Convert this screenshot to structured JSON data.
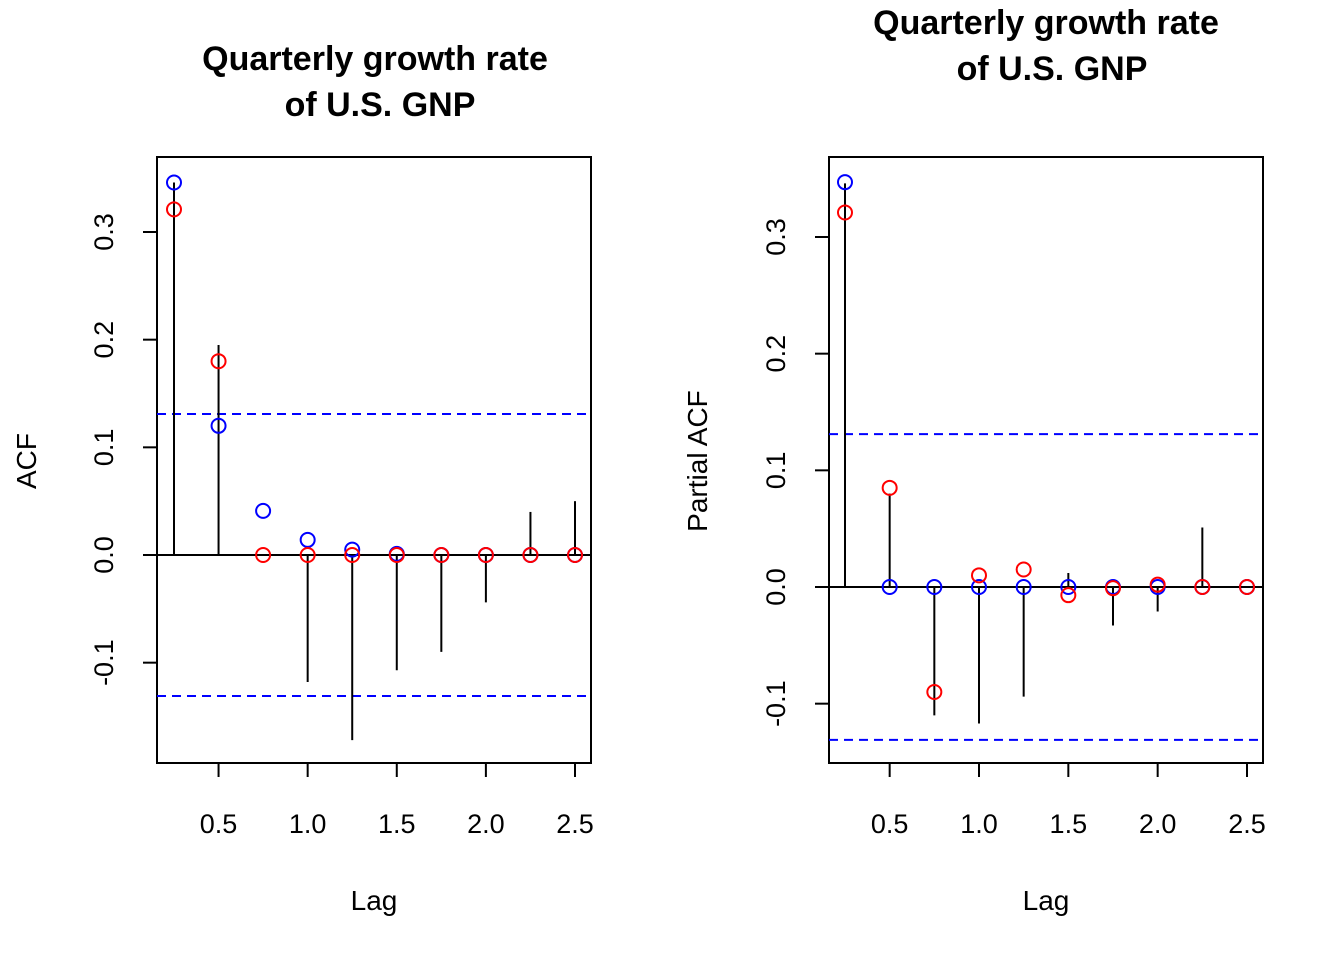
{
  "colors": {
    "blue": "#0000ff",
    "red": "#ff0000",
    "black": "#000000"
  },
  "chart_data": [
    {
      "type": "scatter",
      "title_lines": [
        "Quarterly growth rate",
        "of U.S. GNP"
      ],
      "xlabel": "Lag",
      "ylabel": "ACF",
      "xlim": [
        0.25,
        2.5
      ],
      "ylim": [
        -0.19,
        0.36
      ],
      "xticks": [
        0.5,
        1.0,
        1.5,
        2.0,
        2.5
      ],
      "xtick_labels": [
        "0.5",
        "1.0",
        "1.5",
        "2.0",
        "2.5"
      ],
      "yticks": [
        -0.1,
        0.0,
        0.1,
        0.2,
        0.3
      ],
      "ytick_labels": [
        "-0.1",
        "0.0",
        "0.1",
        "0.2",
        "0.3"
      ],
      "confidence_band": [
        0.131,
        -0.131
      ],
      "lags": [
        0.25,
        0.5,
        0.75,
        1.0,
        1.25,
        1.5,
        1.75,
        2.0,
        2.25,
        2.5
      ],
      "sample": [
        0.346,
        0.195,
        0.0,
        -0.118,
        -0.172,
        -0.107,
        -0.09,
        -0.044,
        0.04,
        0.05
      ],
      "series": [
        {
          "color": "blue",
          "values": [
            0.346,
            0.12,
            0.041,
            0.014,
            0.005,
            0.001,
            0.0,
            0.0,
            0.0,
            0.0
          ]
        },
        {
          "color": "red",
          "values": [
            0.321,
            0.18,
            0.0,
            0.0,
            0.0,
            0.0,
            0.0,
            0.0,
            0.0,
            0.0
          ]
        }
      ]
    },
    {
      "type": "scatter",
      "title_lines": [
        "Quarterly growth rate",
        "of U.S. GNP"
      ],
      "xlabel": "Lag",
      "ylabel": "Partial ACF",
      "xlim": [
        0.25,
        2.5
      ],
      "ylim": [
        -0.15,
        0.36
      ],
      "xticks": [
        0.5,
        1.0,
        1.5,
        2.0,
        2.5
      ],
      "xtick_labels": [
        "0.5",
        "1.0",
        "1.5",
        "2.0",
        "2.5"
      ],
      "yticks": [
        -0.1,
        0.0,
        0.1,
        0.2,
        0.3
      ],
      "ytick_labels": [
        "-0.1",
        "0.0",
        "0.1",
        "0.2",
        "0.3"
      ],
      "confidence_band": [
        0.131,
        -0.131
      ],
      "lags": [
        0.25,
        0.5,
        0.75,
        1.0,
        1.25,
        1.5,
        1.75,
        2.0,
        2.25,
        2.5
      ],
      "sample": [
        0.346,
        0.08,
        -0.11,
        -0.117,
        -0.094,
        0.012,
        -0.033,
        -0.021,
        0.051,
        0.0
      ],
      "series": [
        {
          "color": "blue",
          "values": [
            0.347,
            0.0,
            0.0,
            0.0,
            0.0,
            0.0,
            0.0,
            0.0,
            0.0,
            0.0
          ]
        },
        {
          "color": "red",
          "values": [
            0.321,
            0.085,
            -0.09,
            0.01,
            0.015,
            -0.007,
            -0.001,
            0.002,
            0.0,
            0.0
          ]
        }
      ]
    }
  ]
}
